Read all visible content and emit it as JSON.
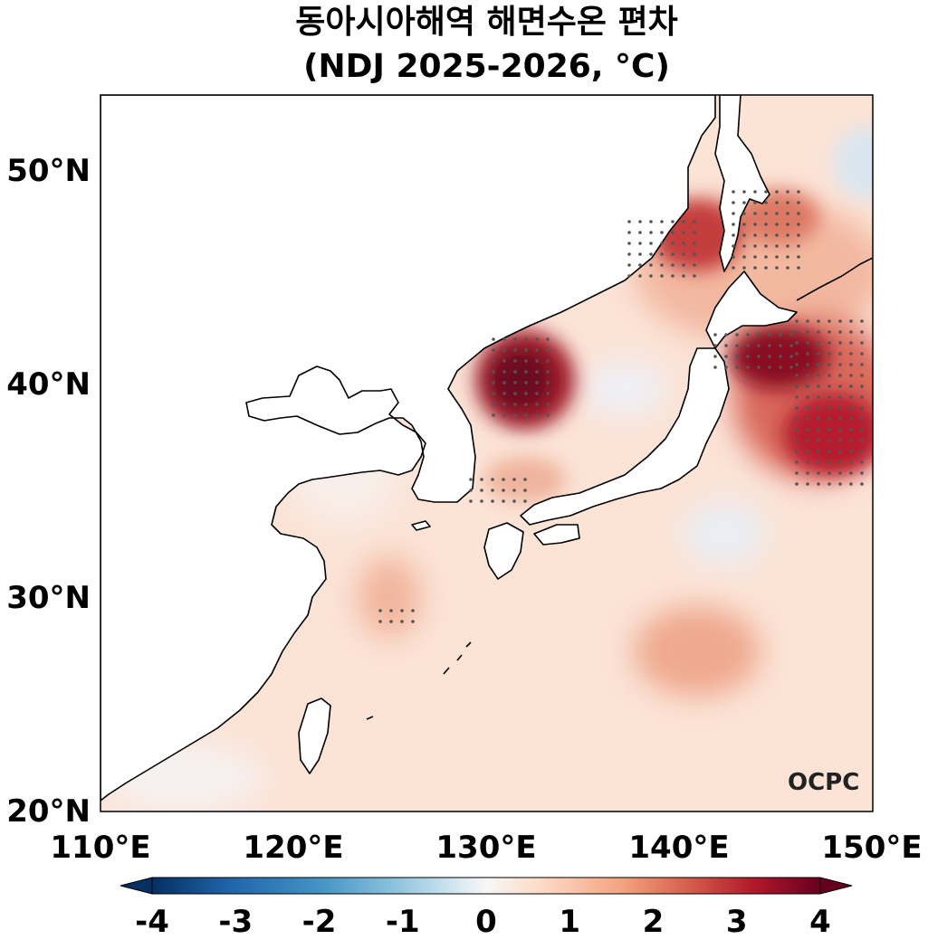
{
  "title": {
    "line1": "동아시아해역 해면수온 편차",
    "line2": "(NDJ 2025-2026, °C)"
  },
  "map": {
    "lon_range": [
      110,
      150
    ],
    "lat_range": [
      20,
      53.5
    ],
    "x_ticks": [
      "110°E",
      "120°E",
      "130°E",
      "140°E",
      "150°E"
    ],
    "y_ticks": [
      "20°N",
      "30°N",
      "40°N",
      "50°N"
    ],
    "logo_text": "OCPC"
  },
  "colorbar": {
    "labels": [
      "-4",
      "-3",
      "-2",
      "-1",
      "0",
      "1",
      "2",
      "3",
      "4"
    ],
    "range": [
      -4,
      4
    ],
    "colors": [
      "#053061",
      "#2166ac",
      "#4393c3",
      "#92c5de",
      "#d1e5f0",
      "#f7f7f7",
      "#fddbc7",
      "#f4a582",
      "#d6604d",
      "#b2182b",
      "#67001f"
    ]
  }
}
